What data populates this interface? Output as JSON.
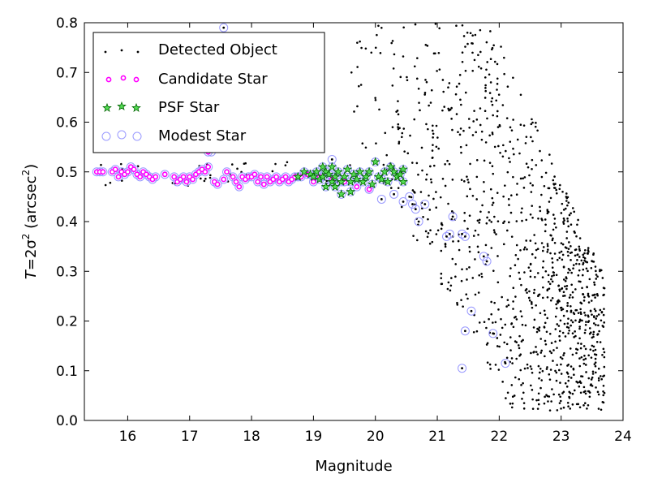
{
  "chart_data": {
    "type": "scatter",
    "xlabel": "Magnitude",
    "ylabel": "T = 2σ² (arcsec²)",
    "ylabel_parts": {
      "a": "T",
      "b": "=2σ",
      "c": "2",
      "d": " (arcsec",
      "e": "2",
      "f": ")"
    },
    "xlim": [
      15.3,
      24
    ],
    "ylim": [
      0.0,
      0.8
    ],
    "x_ticks": [
      "16",
      "17",
      "18",
      "19",
      "20",
      "21",
      "22",
      "23",
      "24"
    ],
    "y_ticks": [
      "0.0",
      "0.1",
      "0.2",
      "0.3",
      "0.4",
      "0.5",
      "0.6",
      "0.7",
      "0.8"
    ],
    "grid": false,
    "legend_position": "top-left",
    "series": [
      {
        "name": "Detected Object",
        "marker": "dot",
        "color": "#000000"
      },
      {
        "name": "Candidate Star",
        "marker": "circle",
        "color": "#ff00ff"
      },
      {
        "name": "PSF Star",
        "marker": "star",
        "color": "#00aa00"
      },
      {
        "name": "Modest Star",
        "marker": "open-circle",
        "color": "#9999ff"
      }
    ],
    "points": {
      "candidate": [
        [
          15.5,
          0.5
        ],
        [
          15.55,
          0.5
        ],
        [
          15.6,
          0.5
        ],
        [
          15.75,
          0.5
        ],
        [
          15.8,
          0.505
        ],
        [
          15.85,
          0.49
        ],
        [
          15.9,
          0.5
        ],
        [
          15.95,
          0.495
        ],
        [
          16.0,
          0.5
        ],
        [
          16.05,
          0.51
        ],
        [
          16.1,
          0.505
        ],
        [
          16.15,
          0.495
        ],
        [
          16.2,
          0.49
        ],
        [
          16.25,
          0.5
        ],
        [
          16.3,
          0.495
        ],
        [
          16.35,
          0.49
        ],
        [
          16.4,
          0.485
        ],
        [
          16.45,
          0.49
        ],
        [
          16.6,
          0.495
        ],
        [
          16.75,
          0.49
        ],
        [
          16.8,
          0.48
        ],
        [
          16.85,
          0.485
        ],
        [
          16.9,
          0.49
        ],
        [
          16.95,
          0.48
        ],
        [
          17.0,
          0.49
        ],
        [
          17.05,
          0.485
        ],
        [
          17.1,
          0.495
        ],
        [
          17.15,
          0.5
        ],
        [
          17.2,
          0.505
        ],
        [
          17.25,
          0.5
        ],
        [
          17.3,
          0.51
        ],
        [
          17.4,
          0.48
        ],
        [
          17.45,
          0.475
        ],
        [
          17.55,
          0.485
        ],
        [
          17.6,
          0.5
        ],
        [
          17.7,
          0.49
        ],
        [
          17.75,
          0.48
        ],
        [
          17.8,
          0.47
        ],
        [
          17.85,
          0.49
        ],
        [
          17.9,
          0.485
        ],
        [
          17.95,
          0.49
        ],
        [
          18.0,
          0.49
        ],
        [
          18.05,
          0.495
        ],
        [
          18.1,
          0.48
        ],
        [
          18.15,
          0.49
        ],
        [
          18.2,
          0.475
        ],
        [
          18.25,
          0.49
        ],
        [
          18.3,
          0.48
        ],
        [
          18.35,
          0.485
        ],
        [
          18.4,
          0.49
        ],
        [
          18.45,
          0.48
        ],
        [
          18.5,
          0.485
        ],
        [
          18.55,
          0.49
        ],
        [
          18.6,
          0.48
        ],
        [
          18.65,
          0.485
        ],
        [
          18.7,
          0.49
        ],
        [
          18.8,
          0.49
        ],
        [
          18.9,
          0.495
        ],
        [
          19.0,
          0.48
        ],
        [
          19.1,
          0.49
        ],
        [
          19.3,
          0.485
        ],
        [
          19.5,
          0.48
        ],
        [
          19.7,
          0.47
        ],
        [
          19.9,
          0.465
        ],
        [
          17.3,
          0.54
        ]
      ],
      "psf": [
        [
          18.75,
          0.49
        ],
        [
          18.85,
          0.5
        ],
        [
          18.95,
          0.495
        ],
        [
          19.0,
          0.49
        ],
        [
          19.05,
          0.5
        ],
        [
          19.1,
          0.485
        ],
        [
          19.15,
          0.49
        ],
        [
          19.2,
          0.5
        ],
        [
          19.2,
          0.47
        ],
        [
          19.25,
          0.495
        ],
        [
          19.3,
          0.48
        ],
        [
          19.3,
          0.51
        ],
        [
          19.35,
          0.49
        ],
        [
          19.4,
          0.5
        ],
        [
          19.45,
          0.48
        ],
        [
          19.45,
          0.455
        ],
        [
          19.5,
          0.49
        ],
        [
          19.55,
          0.505
        ],
        [
          19.6,
          0.48
        ],
        [
          19.65,
          0.495
        ],
        [
          19.7,
          0.485
        ],
        [
          19.75,
          0.5
        ],
        [
          19.8,
          0.48
        ],
        [
          19.85,
          0.49
        ],
        [
          19.9,
          0.5
        ],
        [
          19.95,
          0.475
        ],
        [
          20.0,
          0.52
        ],
        [
          20.05,
          0.49
        ],
        [
          20.1,
          0.485
        ],
        [
          20.15,
          0.5
        ],
        [
          20.2,
          0.48
        ],
        [
          20.25,
          0.51
        ],
        [
          20.3,
          0.5
        ],
        [
          20.35,
          0.49
        ],
        [
          20.4,
          0.495
        ],
        [
          20.45,
          0.48
        ],
        [
          19.15,
          0.51
        ],
        [
          19.35,
          0.47
        ],
        [
          19.6,
          0.46
        ],
        [
          20.45,
          0.505
        ]
      ],
      "modest": [
        [
          17.55,
          0.79
        ],
        [
          17.35,
          0.54
        ],
        [
          19.3,
          0.525
        ],
        [
          19.9,
          0.465
        ],
        [
          20.1,
          0.445
        ],
        [
          20.3,
          0.455
        ],
        [
          20.45,
          0.44
        ],
        [
          20.55,
          0.45
        ],
        [
          20.6,
          0.435
        ],
        [
          20.65,
          0.425
        ],
        [
          20.7,
          0.4
        ],
        [
          20.8,
          0.435
        ],
        [
          21.15,
          0.37
        ],
        [
          21.2,
          0.375
        ],
        [
          21.25,
          0.41
        ],
        [
          21.4,
          0.375
        ],
        [
          21.45,
          0.37
        ],
        [
          21.75,
          0.33
        ],
        [
          21.8,
          0.32
        ],
        [
          21.55,
          0.22
        ],
        [
          21.45,
          0.18
        ],
        [
          21.9,
          0.175
        ],
        [
          21.4,
          0.105
        ],
        [
          22.1,
          0.115
        ]
      ],
      "detected_seed": 7,
      "detected_count": 1100
    }
  }
}
